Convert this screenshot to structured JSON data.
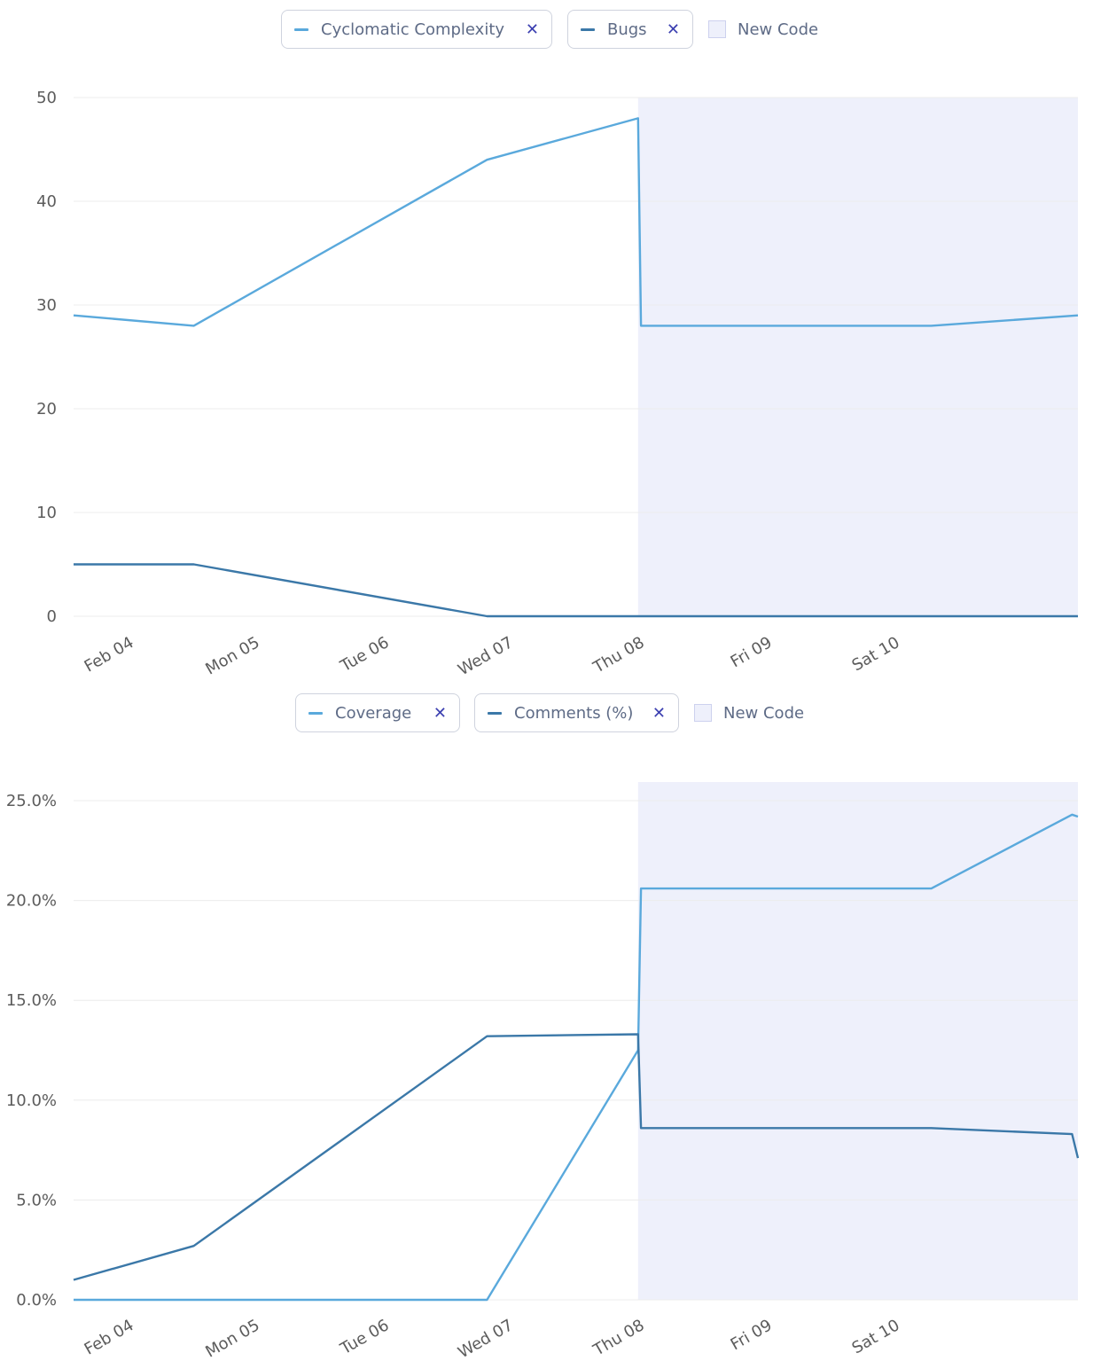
{
  "chart_data": [
    {
      "type": "line",
      "legend": [
        {
          "name": "Cyclomatic Complexity",
          "close": "✕",
          "color": "#5aa9dc"
        },
        {
          "name": "Bugs",
          "close": "✕",
          "color": "#3b78a8"
        }
      ],
      "new_code_label": "New Code",
      "new_code_color": "#eef0fb",
      "x_ticks": [
        "Feb 04",
        "Mon 05",
        "Tue 06",
        "Wed 07",
        "Thu 08",
        "Fri 09",
        "Sat 10"
      ],
      "y_ticks": [
        "0",
        "10",
        "20",
        "30",
        "40",
        "50"
      ],
      "ylim": [
        0,
        50
      ],
      "xlim": [
        0,
        6.85
      ],
      "new_code_start": 3.85,
      "grid": true,
      "series": [
        {
          "name": "Cyclomatic Complexity",
          "color": "#5aa9dc",
          "x": [
            0,
            0.82,
            2.82,
            3.85,
            3.87,
            5.85,
            6.85
          ],
          "y": [
            29,
            28,
            44,
            48,
            28,
            28,
            29
          ]
        },
        {
          "name": "Bugs",
          "color": "#3b78a8",
          "x": [
            0,
            0.82,
            2.82,
            3.85,
            3.87,
            5.85,
            6.85
          ],
          "y": [
            5,
            5,
            0,
            0,
            0,
            0,
            0
          ]
        }
      ]
    },
    {
      "type": "line",
      "legend": [
        {
          "name": "Coverage",
          "close": "✕",
          "color": "#5aa9dc"
        },
        {
          "name": "Comments (%)",
          "close": "✕",
          "color": "#3b78a8"
        }
      ],
      "new_code_label": "New Code",
      "new_code_color": "#eef0fb",
      "x_ticks": [
        "Feb 04",
        "Mon 05",
        "Tue 06",
        "Wed 07",
        "Thu 08",
        "Fri 09",
        "Sat 10"
      ],
      "y_ticks": [
        "0.0%",
        "5.0%",
        "10.0%",
        "15.0%",
        "20.0%",
        "25.0%"
      ],
      "ylim": [
        0,
        25
      ],
      "xlim": [
        0,
        6.85
      ],
      "new_code_start": 3.85,
      "grid": true,
      "series": [
        {
          "name": "Coverage",
          "color": "#5aa9dc",
          "x": [
            0,
            0.82,
            2.82,
            3.85,
            3.87,
            5.85,
            6.81,
            6.85
          ],
          "y": [
            0,
            0,
            0,
            12.5,
            20.6,
            20.6,
            24.3,
            24.2
          ]
        },
        {
          "name": "Comments (%)",
          "color": "#3b78a8",
          "x": [
            0,
            0.82,
            2.82,
            3.85,
            3.87,
            5.85,
            6.81,
            6.85
          ],
          "y": [
            1.0,
            2.7,
            13.2,
            13.3,
            8.6,
            8.6,
            8.3,
            7.1
          ]
        }
      ]
    }
  ]
}
